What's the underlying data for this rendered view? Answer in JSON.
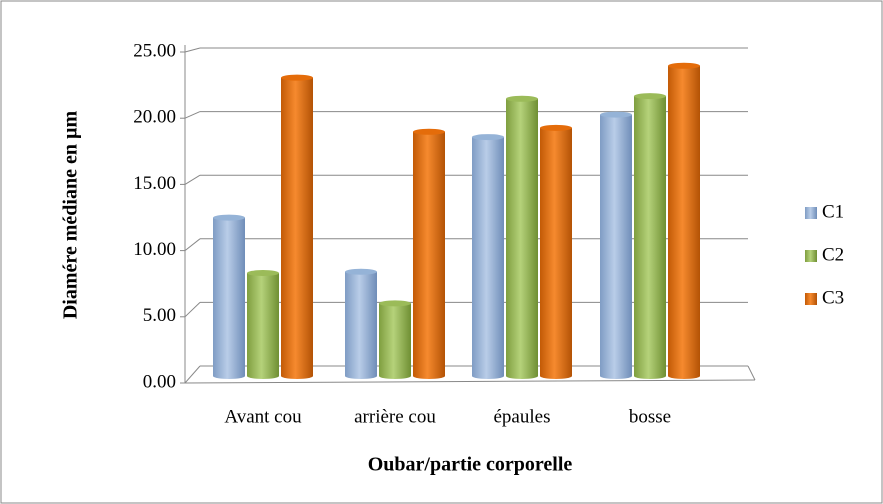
{
  "chart_data": {
    "type": "bar",
    "x_label": "Oubar/partie corporelle",
    "y_label": "Diamére médiane en µm",
    "categories": [
      "Avant cou",
      "arrière cou",
      "épaules",
      "bosse"
    ],
    "series": [
      {
        "name": "C1",
        "color": "#95b3d7",
        "values": [
          12.0,
          7.9,
          18.1,
          19.8
        ]
      },
      {
        "name": "C2",
        "color": "#9bbb59",
        "values": [
          7.8,
          5.5,
          21.0,
          21.2
        ]
      },
      {
        "name": "C3",
        "color": "#e46c0a",
        "values": [
          22.6,
          18.5,
          18.8,
          23.5
        ]
      }
    ],
    "ylim": [
      0,
      25
    ],
    "yticks": [
      {
        "value": 0,
        "label": "0.00"
      },
      {
        "value": 5,
        "label": "5.00"
      },
      {
        "value": 10,
        "label": "10.00"
      },
      {
        "value": 15,
        "label": "15.00"
      },
      {
        "value": 20,
        "label": "20.00"
      },
      {
        "value": 25,
        "label": "25.00"
      }
    ],
    "grid": true,
    "legend": "right"
  }
}
